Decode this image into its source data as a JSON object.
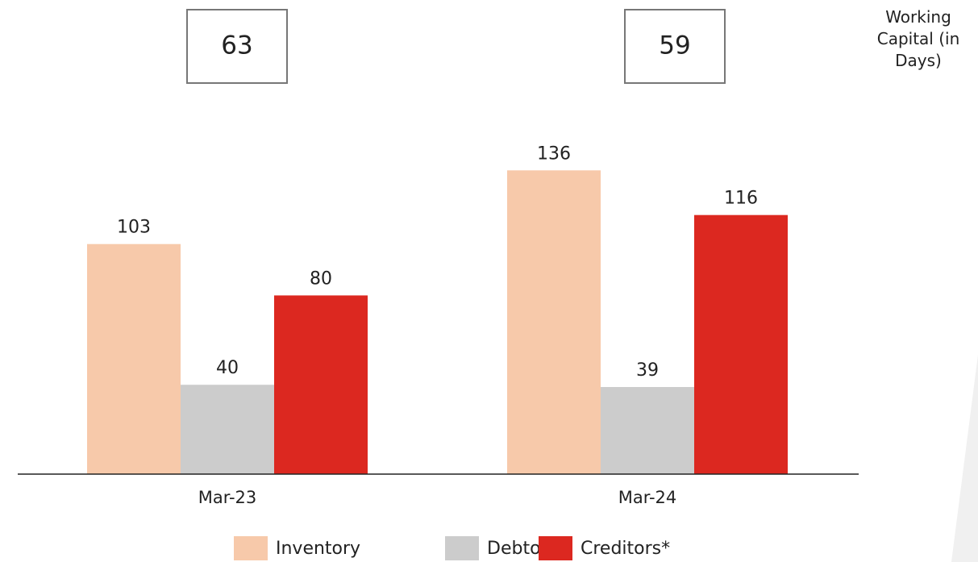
{
  "chart_data": {
    "type": "bar",
    "categories": [
      "Mar-23",
      "Mar-24"
    ],
    "series": [
      {
        "name": "Inventory",
        "color": "#f7c9aa",
        "values": [
          103,
          136
        ]
      },
      {
        "name": "Debtors",
        "color": "#cccccc",
        "values": [
          40,
          39
        ]
      },
      {
        "name": "Creditors*",
        "color": "#dc2820",
        "values": [
          80,
          116
        ]
      }
    ],
    "working_capital": {
      "label": "Working Capital (in Days)",
      "values": [
        63,
        59
      ]
    }
  }
}
